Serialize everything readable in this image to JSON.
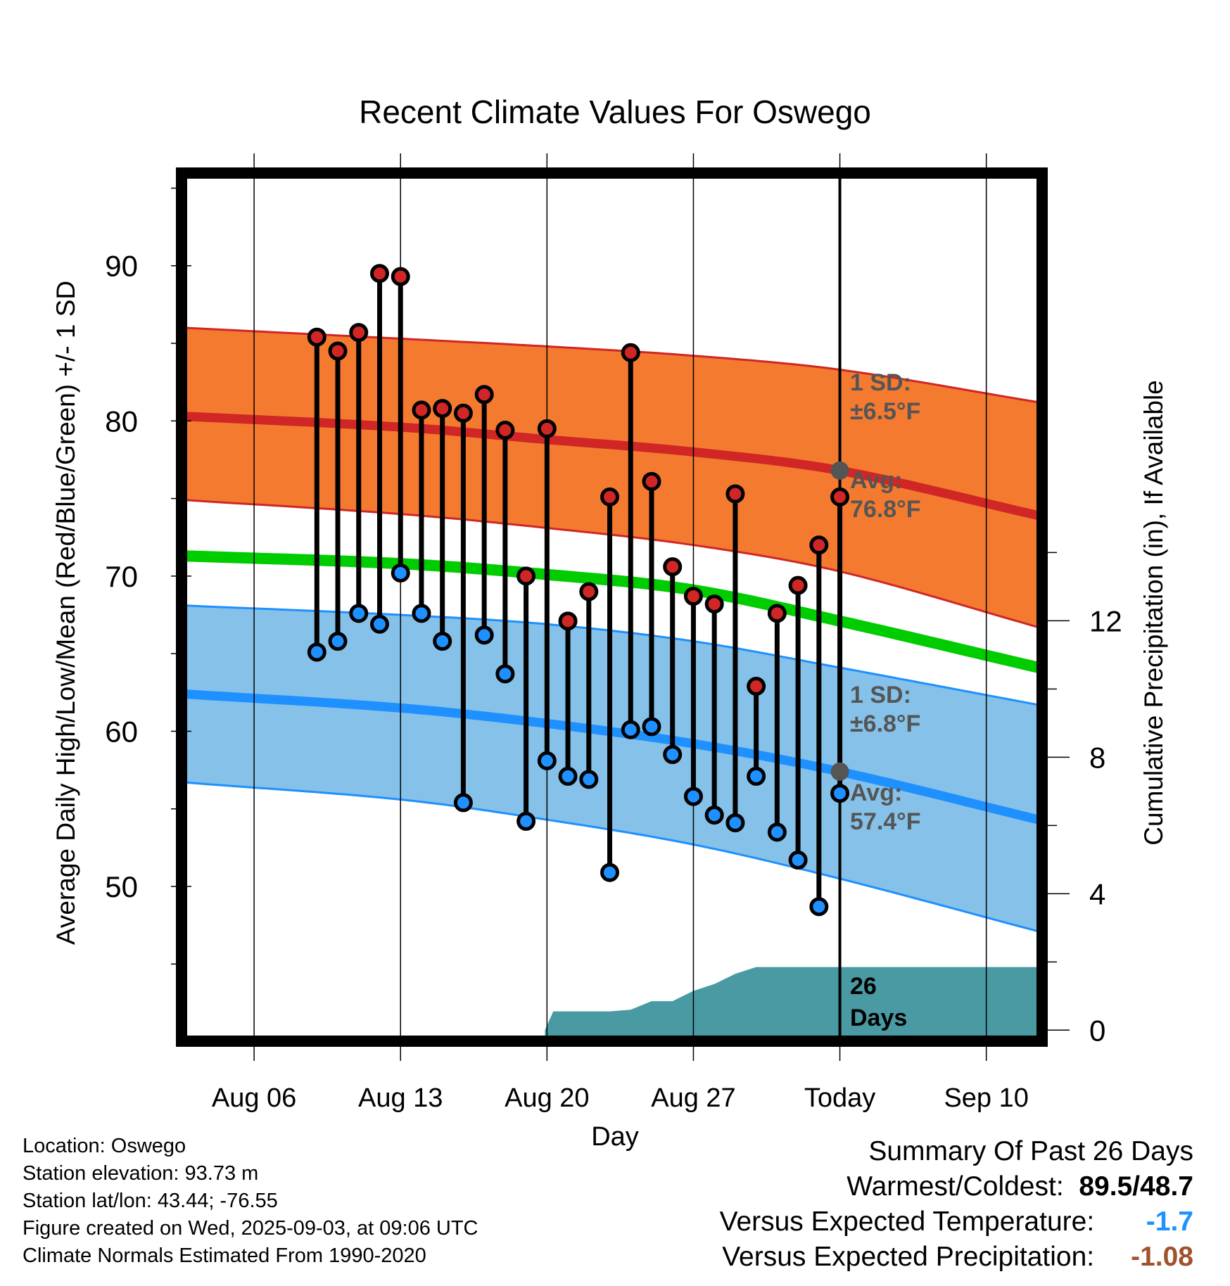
{
  "chart_data": {
    "type": "line",
    "title": "Recent Climate Values For Oswego",
    "xlabel": "Day",
    "ylabel": "Average Daily High/Low/Mean (Red/Blue/Green) +/- 1 SD",
    "y2label": "Cumulative Precipitation (in), If Available",
    "ylim": [
      40.3,
      95.7
    ],
    "y2lim": [
      -0.2,
      25
    ],
    "yticks": [
      "50",
      "60",
      "70",
      "80",
      "90"
    ],
    "y2ticks": [
      "0",
      "4",
      "8",
      "12"
    ],
    "xtick_labels": [
      "Aug 06",
      "Aug 13",
      "Aug 20",
      "Aug 27",
      "Today",
      "Sep 10"
    ],
    "xtick_days": [
      6,
      13,
      20,
      27,
      34,
      41
    ],
    "xlim": [
      2.7,
      43.5
    ],
    "today_day": 34,
    "normals": {
      "x": [
        2.7,
        13,
        20,
        27,
        34,
        43.5
      ],
      "high_avg": [
        80.3,
        79.6,
        78.8,
        78.0,
        76.8,
        73.9
      ],
      "high_upper": [
        86.0,
        85.3,
        84.8,
        84.2,
        83.3,
        81.2
      ],
      "high_lower": [
        74.9,
        74.0,
        73.1,
        72.0,
        70.3,
        66.7
      ],
      "low_avg": [
        62.4,
        61.5,
        60.5,
        59.2,
        57.4,
        54.3
      ],
      "low_upper": [
        68.1,
        67.5,
        66.9,
        65.8,
        64.1,
        61.7
      ],
      "low_lower": [
        56.7,
        55.6,
        54.3,
        52.7,
        50.5,
        47.1
      ],
      "mean_avg": [
        71.3,
        70.8,
        70.1,
        69.1,
        67.1,
        64.1
      ],
      "colors": {
        "high": "#d02626",
        "high_band": "#f47a30",
        "low": "#1e90ff",
        "low_band": "#85c1e8",
        "mean": "#00cc00"
      }
    },
    "series": [
      {
        "name": "High",
        "x": [
          9,
          10,
          11,
          12,
          13,
          14,
          15,
          16,
          17,
          18,
          19,
          20,
          21,
          22,
          23,
          24,
          25,
          26,
          27,
          28,
          29,
          30,
          31,
          32,
          33,
          34
        ],
        "values": [
          85.4,
          84.5,
          85.7,
          89.5,
          89.3,
          80.7,
          80.8,
          80.5,
          81.7,
          79.4,
          70.0,
          79.5,
          67.1,
          69.0,
          75.1,
          84.4,
          76.1,
          70.6,
          68.7,
          68.2,
          75.3,
          62.9,
          67.6,
          69.4,
          72.0,
          75.1
        ]
      },
      {
        "name": "Low",
        "x": [
          9,
          10,
          11,
          12,
          13,
          14,
          15,
          16,
          17,
          18,
          19,
          20,
          21,
          22,
          23,
          24,
          25,
          26,
          27,
          28,
          29,
          30,
          31,
          32,
          33,
          34
        ],
        "values": [
          65.1,
          65.8,
          67.6,
          66.9,
          70.2,
          67.6,
          65.8,
          55.4,
          66.2,
          63.7,
          54.2,
          58.1,
          57.1,
          56.9,
          50.9,
          60.1,
          60.3,
          58.5,
          55.8,
          54.6,
          54.1,
          57.1,
          53.5,
          51.7,
          48.7,
          56.0
        ]
      }
    ],
    "precipitation": {
      "x": [
        19.9,
        20.3,
        22.0,
        23.0,
        24.0,
        25.0,
        26.0,
        27.0,
        28.0,
        29.0,
        30.0,
        31.0,
        32.0,
        33.0,
        34.0,
        43.5
      ],
      "values": [
        0,
        0.55,
        0.55,
        0.55,
        0.6,
        0.85,
        0.85,
        1.15,
        1.35,
        1.65,
        1.85,
        1.85,
        1.85,
        1.85,
        1.85,
        1.85
      ]
    },
    "annotations": {
      "high_sd": "1 SD:",
      "high_sd_value": "±6.5°F",
      "high_avg_label": "Avg:",
      "high_avg_value": "76.8°F",
      "low_sd": "1 SD:",
      "low_sd_value": "±6.8°F",
      "low_avg_label": "Avg:",
      "low_avg_value": "57.4°F",
      "days_count": "26",
      "days_word": "Days"
    }
  },
  "station": {
    "location": "Location: Oswego",
    "elevation": "Station elevation: 93.73 m",
    "latlon": "Station lat/lon: 43.44; -76.55",
    "created": "Figure created on Wed, 2025-09-03, at 09:06 UTC",
    "normals": "Climate Normals Estimated From 1990-2020"
  },
  "summary": {
    "title": "Summary Of Past 26 Days",
    "warm_cold_label": "Warmest/Coldest:",
    "warmest": "89.5",
    "sep": "/",
    "coldest": "48.7",
    "temp_label": "Versus Expected Temperature:",
    "temp_value": "-1.7",
    "temp_color": "#1e90ff",
    "precip_label": "Versus Expected Precipitation:",
    "precip_value": "-1.08",
    "precip_color": "#a0522d"
  }
}
